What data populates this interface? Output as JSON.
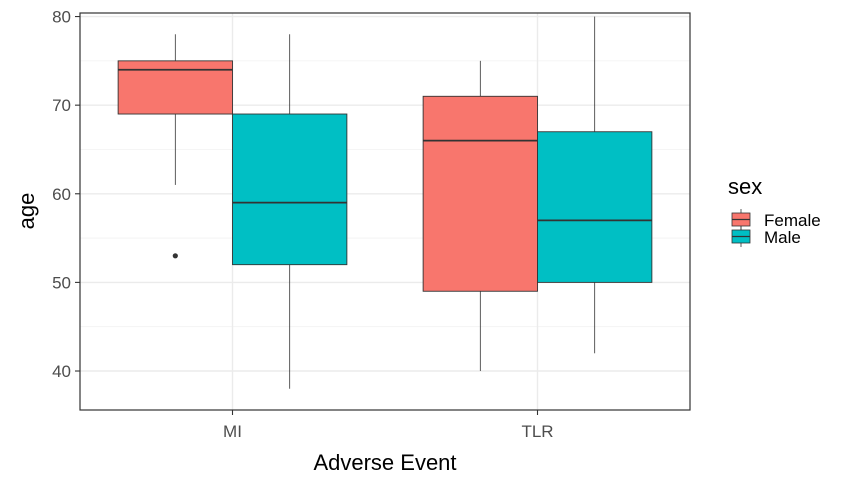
{
  "chart_data": {
    "type": "boxplot",
    "xlabel": "Adverse Event",
    "ylabel": "age",
    "categories": [
      "MI",
      "TLR"
    ],
    "ylim": [
      35.6,
      80.4
    ],
    "yticks": [
      40,
      50,
      60,
      70,
      80
    ],
    "grid": true,
    "legend": {
      "title": "sex",
      "placement": "right"
    },
    "series": [
      {
        "name": "Female",
        "color": "#F8766D",
        "boxes": [
          {
            "category": "MI",
            "min": 61,
            "q1": 69,
            "median": 74,
            "q3": 75,
            "max": 78,
            "outliers": [
              53
            ]
          },
          {
            "category": "TLR",
            "min": 40,
            "q1": 49,
            "median": 66,
            "q3": 71,
            "max": 75,
            "outliers": []
          }
        ]
      },
      {
        "name": "Male",
        "color": "#00BFC4",
        "boxes": [
          {
            "category": "MI",
            "min": 38,
            "q1": 52,
            "median": 59,
            "q3": 69,
            "max": 78,
            "outliers": []
          },
          {
            "category": "TLR",
            "min": 42,
            "q1": 50,
            "median": 57,
            "q3": 67,
            "max": 80,
            "outliers": []
          }
        ]
      }
    ]
  }
}
